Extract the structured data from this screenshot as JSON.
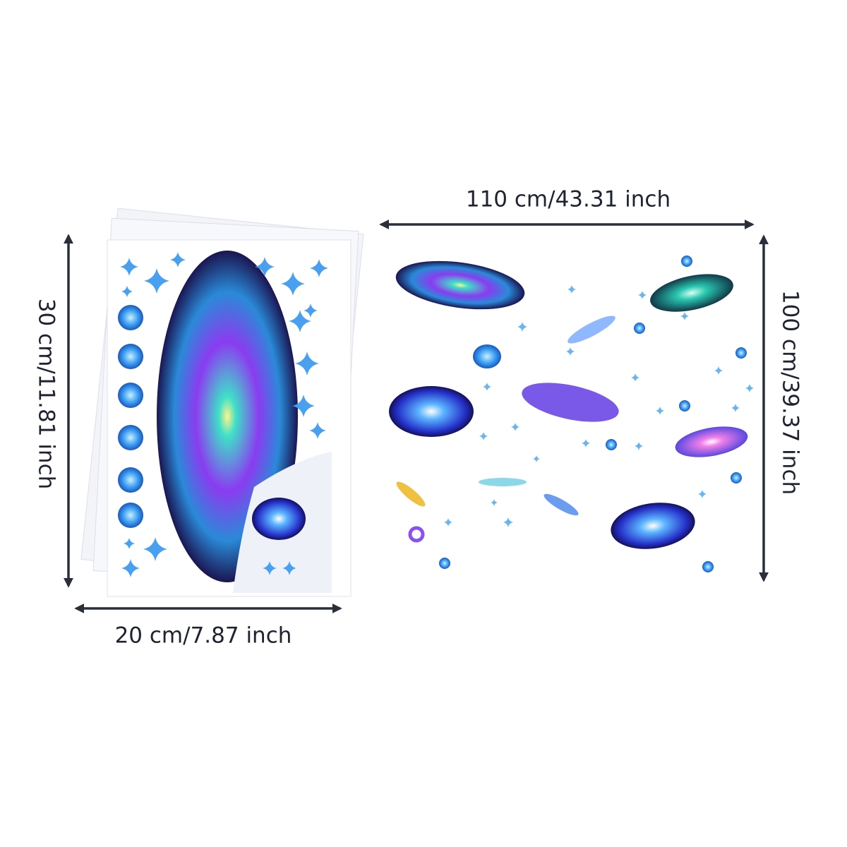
{
  "dimensions": {
    "wide_width": "110 cm/43.31 inch",
    "wide_height": "100 cm/39.37 inch",
    "sheet_height": "30 cm/11.81 inch",
    "sheet_width": "20 cm/7.87 inch"
  }
}
